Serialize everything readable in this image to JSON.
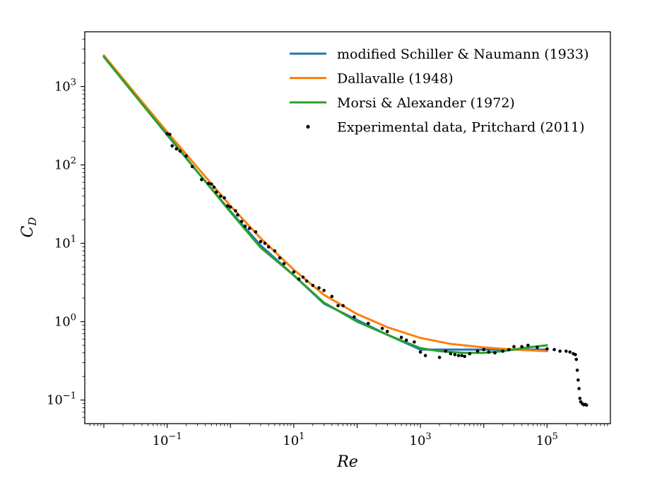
{
  "chart_data": {
    "type": "line",
    "title": "",
    "xlabel": "Re",
    "ylabel": "C_D",
    "xscale": "log",
    "yscale": "log",
    "xlim": [
      0.005,
      1000000
    ],
    "ylim": [
      0.05,
      5000
    ],
    "grid": false,
    "legend_position": "top-right",
    "x_ticks": [
      {
        "value": 0.1,
        "base": "10",
        "exp": "−1"
      },
      {
        "value": 10,
        "base": "10",
        "exp": "1"
      },
      {
        "value": 1000,
        "base": "10",
        "exp": "3"
      },
      {
        "value": 100000,
        "base": "10",
        "exp": "5"
      }
    ],
    "y_ticks": [
      {
        "value": 0.1,
        "base": "10",
        "exp": "−1"
      },
      {
        "value": 1,
        "base": "10",
        "exp": "0"
      },
      {
        "value": 10,
        "base": "10",
        "exp": "1"
      },
      {
        "value": 100,
        "base": "10",
        "exp": "2"
      },
      {
        "value": 1000,
        "base": "10",
        "exp": "3"
      }
    ],
    "series": [
      {
        "name": "modified Schiller & Naumann (1933)",
        "kind": "line",
        "color": "#1f77b4",
        "points": [
          [
            0.01,
            2400
          ],
          [
            0.03,
            801
          ],
          [
            0.1,
            241
          ],
          [
            0.3,
            81.6
          ],
          [
            1,
            25.6
          ],
          [
            3,
            9.4
          ],
          [
            10,
            3.9
          ],
          [
            30,
            1.7
          ],
          [
            100,
            1.05
          ],
          [
            300,
            0.68
          ],
          [
            1000,
            0.44
          ],
          [
            3000,
            0.44
          ],
          [
            10000,
            0.44
          ],
          [
            30000,
            0.44
          ],
          [
            100000,
            0.44
          ]
        ]
      },
      {
        "name": "Dallavalle (1948)",
        "kind": "line",
        "color": "#ff7f0e",
        "points": [
          [
            0.01,
            2500
          ],
          [
            0.03,
            850
          ],
          [
            0.1,
            264
          ],
          [
            0.3,
            93
          ],
          [
            1,
            30
          ],
          [
            3,
            11.6
          ],
          [
            10,
            4.6
          ],
          [
            30,
            2.2
          ],
          [
            100,
            1.25
          ],
          [
            300,
            0.85
          ],
          [
            1000,
            0.62
          ],
          [
            3000,
            0.52
          ],
          [
            10000,
            0.47
          ],
          [
            30000,
            0.44
          ],
          [
            100000,
            0.42
          ]
        ]
      },
      {
        "name": "Morsi & Alexander (1972)",
        "kind": "line",
        "color": "#2ca02c",
        "points": [
          [
            0.01,
            2400
          ],
          [
            0.03,
            801
          ],
          [
            0.1,
            245
          ],
          [
            0.3,
            82
          ],
          [
            1,
            25
          ],
          [
            3,
            8.8
          ],
          [
            10,
            3.9
          ],
          [
            30,
            1.75
          ],
          [
            100,
            1.0
          ],
          [
            300,
            0.68
          ],
          [
            1000,
            0.46
          ],
          [
            2000,
            0.42
          ],
          [
            5000,
            0.4
          ],
          [
            10000,
            0.4
          ],
          [
            20000,
            0.42
          ],
          [
            50000,
            0.47
          ],
          [
            100000,
            0.5
          ]
        ]
      },
      {
        "name": "Experimental data, Pritchard (2011)",
        "kind": "scatter",
        "color": "#000000",
        "points": [
          [
            0.1,
            250
          ],
          [
            0.11,
            245
          ],
          [
            0.12,
            175
          ],
          [
            0.14,
            160
          ],
          [
            0.16,
            150
          ],
          [
            0.2,
            130
          ],
          [
            0.25,
            95
          ],
          [
            0.35,
            65
          ],
          [
            0.45,
            58
          ],
          [
            0.5,
            57
          ],
          [
            0.55,
            52
          ],
          [
            0.6,
            45
          ],
          [
            0.7,
            40
          ],
          [
            0.8,
            38
          ],
          [
            0.9,
            30
          ],
          [
            1.0,
            29
          ],
          [
            1.2,
            26
          ],
          [
            1.3,
            23
          ],
          [
            1.5,
            19
          ],
          [
            1.7,
            16.5
          ],
          [
            2,
            15.5
          ],
          [
            2.5,
            14
          ],
          [
            3,
            10.5
          ],
          [
            3.5,
            10
          ],
          [
            4,
            9
          ],
          [
            5,
            8
          ],
          [
            6,
            6.5
          ],
          [
            7,
            5.5
          ],
          [
            10,
            4.3
          ],
          [
            12,
            3.5
          ],
          [
            14,
            3.7
          ],
          [
            16,
            3.3
          ],
          [
            20,
            2.9
          ],
          [
            25,
            2.7
          ],
          [
            30,
            2.5
          ],
          [
            40,
            2.1
          ],
          [
            50,
            1.6
          ],
          [
            60,
            1.6
          ],
          [
            90,
            1.15
          ],
          [
            150,
            0.95
          ],
          [
            250,
            0.82
          ],
          [
            300,
            0.75
          ],
          [
            500,
            0.63
          ],
          [
            600,
            0.58
          ],
          [
            800,
            0.55
          ],
          [
            1000,
            0.41
          ],
          [
            1200,
            0.37
          ],
          [
            2000,
            0.35
          ],
          [
            2500,
            0.42
          ],
          [
            3000,
            0.39
          ],
          [
            3500,
            0.38
          ],
          [
            4000,
            0.37
          ],
          [
            4500,
            0.37
          ],
          [
            5000,
            0.36
          ],
          [
            6000,
            0.39
          ],
          [
            8000,
            0.42
          ],
          [
            10000,
            0.44
          ],
          [
            12000,
            0.41
          ],
          [
            15000,
            0.4
          ],
          [
            20000,
            0.42
          ],
          [
            25000,
            0.44
          ],
          [
            30000,
            0.48
          ],
          [
            40000,
            0.48
          ],
          [
            50000,
            0.5
          ],
          [
            70000,
            0.47
          ],
          [
            100000,
            0.45
          ],
          [
            130000,
            0.44
          ],
          [
            160000,
            0.42
          ],
          [
            200000,
            0.42
          ],
          [
            230000,
            0.41
          ],
          [
            260000,
            0.39
          ],
          [
            280000,
            0.38
          ],
          [
            290000,
            0.33
          ],
          [
            300000,
            0.24
          ],
          [
            310000,
            0.18
          ],
          [
            320000,
            0.14
          ],
          [
            330000,
            0.105
          ],
          [
            340000,
            0.095
          ],
          [
            360000,
            0.09
          ],
          [
            380000,
            0.087
          ],
          [
            400000,
            0.088
          ],
          [
            420000,
            0.086
          ]
        ]
      }
    ]
  }
}
